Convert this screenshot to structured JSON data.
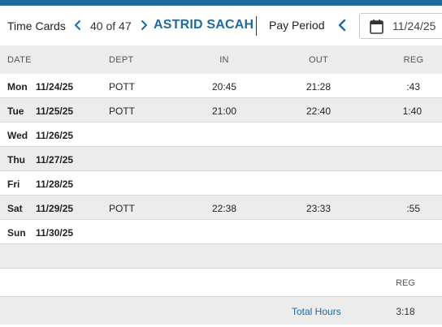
{
  "theme": {
    "accent": "#1f6a9e",
    "topbar": "#1f6a9e",
    "row_alt": "#ececec"
  },
  "header": {
    "title": "Time Cards",
    "prev_icon": "chevron-left-icon",
    "count": "40 of 47",
    "next_icon": "chevron-right-icon",
    "employee_name": "ASTRID SACAH",
    "pay_period_label": "Pay Period",
    "pay_period_prev_icon": "chevron-left-icon",
    "calendar_icon": "calendar-icon",
    "date_value": "11/24/25"
  },
  "table": {
    "columns": {
      "date": "DATE",
      "dept": "DEPT",
      "in": "IN",
      "out": "OUT",
      "reg": "REG"
    },
    "rows": [
      {
        "day": "Mon",
        "date": "11/24/25",
        "dept": "POTT",
        "in": "20:45",
        "out": "21:28",
        "reg": ":43"
      },
      {
        "day": "Tue",
        "date": "11/25/25",
        "dept": "POTT",
        "in": "21:00",
        "out": "22:40",
        "reg": "1:40"
      },
      {
        "day": "Wed",
        "date": "11/26/25",
        "dept": "",
        "in": "",
        "out": "",
        "reg": ""
      },
      {
        "day": "Thu",
        "date": "11/27/25",
        "dept": "",
        "in": "",
        "out": "",
        "reg": ""
      },
      {
        "day": "Fri",
        "date": "11/28/25",
        "dept": "",
        "in": "",
        "out": "",
        "reg": ""
      },
      {
        "day": "Sat",
        "date": "11/29/25",
        "dept": "POTT",
        "in": "22:38",
        "out": "23:33",
        "reg": ":55"
      },
      {
        "day": "Sun",
        "date": "11/30/25",
        "dept": "",
        "in": "",
        "out": "",
        "reg": ""
      }
    ]
  },
  "totals": {
    "column_label": "REG",
    "label": "Total Hours",
    "reg": "3:18"
  }
}
